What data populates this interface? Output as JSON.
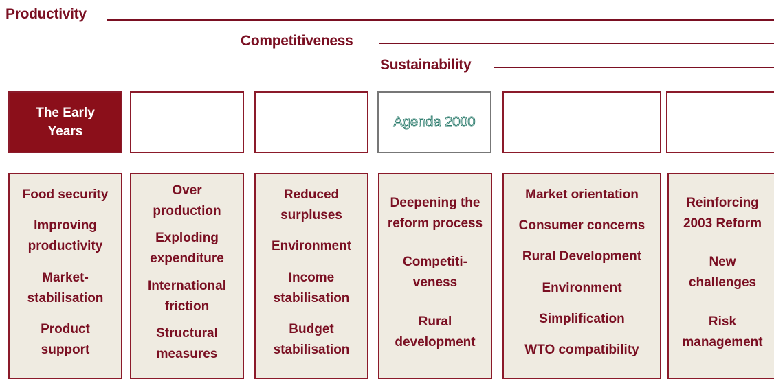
{
  "headers": [
    "Productivity",
    "Competitiveness",
    "Sustainability"
  ],
  "top_boxes": [
    {
      "label": "The Early Years"
    },
    {
      "label": "Agenda 2000"
    }
  ],
  "columns": [
    {
      "items": [
        "Food security",
        "Improving productivity",
        "Market-stabilisation",
        "Product support"
      ]
    },
    {
      "items": [
        "Over production",
        "Exploding expenditure",
        "International friction",
        "Structural measures"
      ]
    },
    {
      "items": [
        "Reduced surpluses",
        "Environment",
        "Income stabilisation",
        "Budget stabilisation"
      ]
    },
    {
      "items": [
        "Deepening the reform process",
        "Competiti-veness",
        "Rural development"
      ]
    },
    {
      "items": [
        "Market orientation",
        "Consumer concerns",
        "Rural Development",
        "Environment",
        "Simplification",
        "WTO compatibility"
      ]
    },
    {
      "items": [
        "Reinforcing 2003 Reform",
        "New challenges",
        "Risk management"
      ]
    }
  ]
}
